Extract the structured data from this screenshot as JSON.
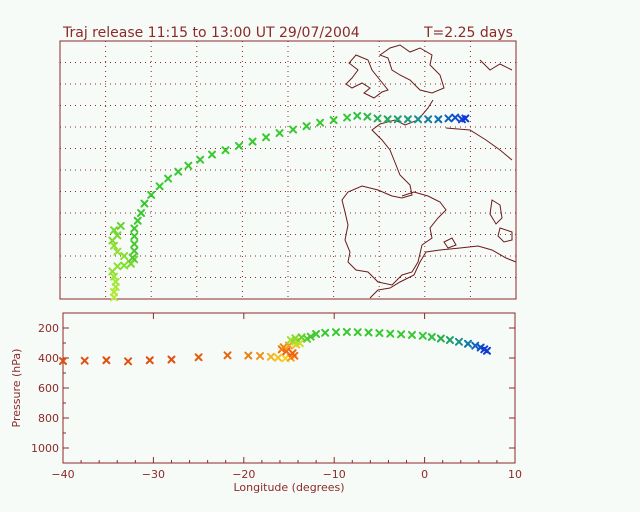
{
  "chart_data": [
    {
      "type": "scatter",
      "title": "Traj release 11:15 to 13:00 UT 29/07/2004",
      "subtitle": "T=2.25 days",
      "panel": "map",
      "xlim": [
        -17,
        10
      ],
      "ylim": [
        30,
        60
      ],
      "grid": true,
      "points": [
        {
          "x": -13.8,
          "y": 30.2,
          "color": "#b8e838"
        },
        {
          "x": -13.8,
          "y": 30.8,
          "color": "#b0e838"
        },
        {
          "x": -13.7,
          "y": 31.4,
          "color": "#a8e838"
        },
        {
          "x": -13.7,
          "y": 32.0,
          "color": "#a0e838"
        },
        {
          "x": -13.8,
          "y": 32.6,
          "color": "#98e838"
        },
        {
          "x": -13.9,
          "y": 33.2,
          "color": "#90e030"
        },
        {
          "x": -13.6,
          "y": 33.8,
          "color": "#88e030"
        },
        {
          "x": -13.2,
          "y": 33.9,
          "color": "#80e030"
        },
        {
          "x": -12.8,
          "y": 34.1,
          "color": "#78d830"
        },
        {
          "x": -12.6,
          "y": 34.6,
          "color": "#70d830"
        },
        {
          "x": -13.2,
          "y": 35.0,
          "color": "#88e030"
        },
        {
          "x": -13.6,
          "y": 35.5,
          "color": "#90e030"
        },
        {
          "x": -13.8,
          "y": 36.2,
          "color": "#88e030"
        },
        {
          "x": -13.9,
          "y": 36.8,
          "color": "#80d830"
        },
        {
          "x": -13.6,
          "y": 37.4,
          "color": "#78d830"
        },
        {
          "x": -13.8,
          "y": 38.0,
          "color": "#70d830"
        },
        {
          "x": -13.4,
          "y": 38.5,
          "color": "#68d030"
        },
        {
          "x": -12.7,
          "y": 34.8,
          "color": "#50c830"
        },
        {
          "x": -12.6,
          "y": 35.6,
          "color": "#48c830"
        },
        {
          "x": -12.6,
          "y": 36.4,
          "color": "#48c830"
        },
        {
          "x": -12.6,
          "y": 37.3,
          "color": "#40c830"
        },
        {
          "x": -12.6,
          "y": 38.2,
          "color": "#40c830"
        },
        {
          "x": -12.4,
          "y": 39.1,
          "color": "#40c830"
        },
        {
          "x": -12.2,
          "y": 40.0,
          "color": "#38c830"
        },
        {
          "x": -12.0,
          "y": 41.1,
          "color": "#38c830"
        },
        {
          "x": -11.6,
          "y": 42.1,
          "color": "#38c830"
        },
        {
          "x": -11.1,
          "y": 43.1,
          "color": "#38c830"
        },
        {
          "x": -10.6,
          "y": 44.0,
          "color": "#38c830"
        },
        {
          "x": -10.0,
          "y": 44.8,
          "color": "#38c830"
        },
        {
          "x": -9.4,
          "y": 45.5,
          "color": "#38c830"
        },
        {
          "x": -8.7,
          "y": 46.2,
          "color": "#38c830"
        },
        {
          "x": -8.0,
          "y": 46.8,
          "color": "#38c830"
        },
        {
          "x": -7.2,
          "y": 47.3,
          "color": "#38c830"
        },
        {
          "x": -6.4,
          "y": 47.8,
          "color": "#38c830"
        },
        {
          "x": -5.6,
          "y": 48.3,
          "color": "#38c830"
        },
        {
          "x": -4.8,
          "y": 48.8,
          "color": "#38c830"
        },
        {
          "x": -4.0,
          "y": 49.3,
          "color": "#38c830"
        },
        {
          "x": -3.2,
          "y": 49.7,
          "color": "#38c830"
        },
        {
          "x": -2.4,
          "y": 50.1,
          "color": "#38c830"
        },
        {
          "x": -1.6,
          "y": 50.5,
          "color": "#38c830"
        },
        {
          "x": -0.8,
          "y": 50.8,
          "color": "#38c830"
        },
        {
          "x": 0.0,
          "y": 51.1,
          "color": "#38c838"
        },
        {
          "x": 0.6,
          "y": 51.3,
          "color": "#30c040"
        },
        {
          "x": 1.2,
          "y": 51.2,
          "color": "#30b848"
        },
        {
          "x": 1.8,
          "y": 51.0,
          "color": "#28b050"
        },
        {
          "x": 2.4,
          "y": 50.9,
          "color": "#28a860"
        },
        {
          "x": 3.0,
          "y": 50.9,
          "color": "#20a070"
        },
        {
          "x": 3.6,
          "y": 50.9,
          "color": "#209880"
        },
        {
          "x": 4.2,
          "y": 50.9,
          "color": "#189090"
        },
        {
          "x": 4.8,
          "y": 50.9,
          "color": "#1880a0"
        },
        {
          "x": 5.4,
          "y": 50.9,
          "color": "#1070b0"
        },
        {
          "x": 6.0,
          "y": 51.0,
          "color": "#1060c0"
        },
        {
          "x": 6.4,
          "y": 51.1,
          "color": "#1050c8"
        },
        {
          "x": 6.8,
          "y": 50.9,
          "color": "#1040d0"
        },
        {
          "x": 7.0,
          "y": 51.0,
          "color": "#1038d8"
        }
      ]
    },
    {
      "type": "scatter",
      "panel": "profile",
      "xlabel": "Longitude  (degrees)",
      "ylabel": "Pressure  (hPa)",
      "xlim": [
        -40,
        10
      ],
      "ylim": [
        1100,
        100
      ],
      "xticks": [
        -40,
        -30,
        -20,
        -10,
        0,
        10
      ],
      "yticks": [
        200,
        400,
        600,
        800,
        1000
      ],
      "grid": false,
      "points": [
        {
          "x": -40.0,
          "y": 420,
          "color": "#e05010"
        },
        {
          "x": -37.6,
          "y": 418,
          "color": "#e05010"
        },
        {
          "x": -35.2,
          "y": 415,
          "color": "#e05010"
        },
        {
          "x": -32.8,
          "y": 422,
          "color": "#e05010"
        },
        {
          "x": -30.4,
          "y": 415,
          "color": "#e05010"
        },
        {
          "x": -28.0,
          "y": 410,
          "color": "#e05010"
        },
        {
          "x": -25.0,
          "y": 395,
          "color": "#e06010"
        },
        {
          "x": -21.8,
          "y": 382,
          "color": "#e06810"
        },
        {
          "x": -19.5,
          "y": 384,
          "color": "#e88010"
        },
        {
          "x": -18.2,
          "y": 386,
          "color": "#f09018"
        },
        {
          "x": -17.0,
          "y": 392,
          "color": "#f8b020"
        },
        {
          "x": -16.2,
          "y": 398,
          "color": "#f8c020"
        },
        {
          "x": -15.4,
          "y": 402,
          "color": "#f8d028"
        },
        {
          "x": -14.8,
          "y": 398,
          "color": "#f8a018"
        },
        {
          "x": -14.4,
          "y": 385,
          "color": "#f07010"
        },
        {
          "x": -14.6,
          "y": 368,
          "color": "#f06010"
        },
        {
          "x": -15.3,
          "y": 355,
          "color": "#f06010"
        },
        {
          "x": -15.8,
          "y": 342,
          "color": "#f07010"
        },
        {
          "x": -15.6,
          "y": 328,
          "color": "#f08818"
        },
        {
          "x": -15.0,
          "y": 316,
          "color": "#f0a020"
        },
        {
          "x": -14.2,
          "y": 310,
          "color": "#f0c020"
        },
        {
          "x": -13.8,
          "y": 302,
          "color": "#c8e030"
        },
        {
          "x": -14.3,
          "y": 290,
          "color": "#b0e030"
        },
        {
          "x": -14.8,
          "y": 280,
          "color": "#a0e030"
        },
        {
          "x": -14.3,
          "y": 268,
          "color": "#88d830"
        },
        {
          "x": -13.6,
          "y": 262,
          "color": "#68d030"
        },
        {
          "x": -13.0,
          "y": 272,
          "color": "#58d030"
        },
        {
          "x": -12.6,
          "y": 258,
          "color": "#48c830"
        },
        {
          "x": -12.0,
          "y": 240,
          "color": "#40c830"
        },
        {
          "x": -11.0,
          "y": 232,
          "color": "#38c830"
        },
        {
          "x": -9.8,
          "y": 228,
          "color": "#38c830"
        },
        {
          "x": -8.6,
          "y": 226,
          "color": "#38c830"
        },
        {
          "x": -7.4,
          "y": 228,
          "color": "#38c830"
        },
        {
          "x": -6.2,
          "y": 230,
          "color": "#38c830"
        },
        {
          "x": -5.0,
          "y": 234,
          "color": "#38c830"
        },
        {
          "x": -3.8,
          "y": 238,
          "color": "#38c830"
        },
        {
          "x": -2.6,
          "y": 242,
          "color": "#38c830"
        },
        {
          "x": -1.4,
          "y": 246,
          "color": "#38c830"
        },
        {
          "x": -0.2,
          "y": 252,
          "color": "#38c838"
        },
        {
          "x": 0.8,
          "y": 260,
          "color": "#30c040"
        },
        {
          "x": 1.8,
          "y": 270,
          "color": "#28b050"
        },
        {
          "x": 2.8,
          "y": 280,
          "color": "#20a068"
        },
        {
          "x": 3.8,
          "y": 292,
          "color": "#189088"
        },
        {
          "x": 4.8,
          "y": 305,
          "color": "#1078a8"
        },
        {
          "x": 5.6,
          "y": 318,
          "color": "#1060c0"
        },
        {
          "x": 6.2,
          "y": 330,
          "color": "#1050c8"
        },
        {
          "x": 6.6,
          "y": 342,
          "color": "#1040d0"
        },
        {
          "x": 6.9,
          "y": 352,
          "color": "#1038d8"
        }
      ]
    }
  ]
}
